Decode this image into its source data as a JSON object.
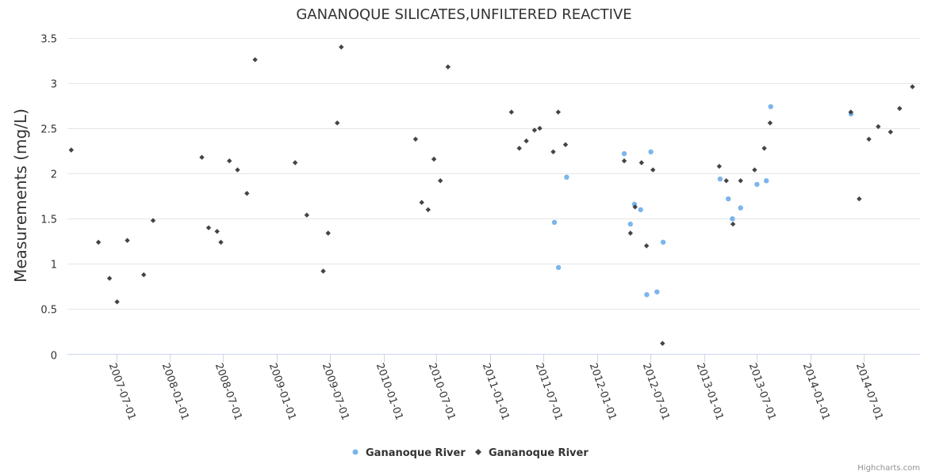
{
  "chart_data": {
    "type": "scatter",
    "title": "GANANOQUE SILICATES,UNFILTERED REACTIVE",
    "ylabel": "Measurements (mg/L)",
    "xlabel": "",
    "ylim": [
      0,
      3.5
    ],
    "y_ticks": [
      "0",
      "0.5",
      "1",
      "1.5",
      "2",
      "2.5",
      "3",
      "3.5"
    ],
    "x_range": [
      "2007-01-15",
      "2015-01-10"
    ],
    "x_ticks": [
      "2007-07-01",
      "2008-01-01",
      "2008-07-01",
      "2009-01-01",
      "2009-07-01",
      "2010-01-01",
      "2010-07-01",
      "2011-01-01",
      "2011-07-01",
      "2012-01-01",
      "2012-07-01",
      "2013-01-01",
      "2013-07-01",
      "2014-01-01",
      "2014-07-01"
    ],
    "grid": true,
    "legend_position": "bottom-center",
    "series": [
      {
        "name": "Gananoque River",
        "marker": "circle",
        "color": "#7cb5ec",
        "points": [
          [
            "2011-08-08",
            1.46
          ],
          [
            "2011-08-22",
            0.96
          ],
          [
            "2011-09-19",
            1.96
          ],
          [
            "2012-04-03",
            2.22
          ],
          [
            "2012-04-24",
            1.44
          ],
          [
            "2012-05-08",
            1.66
          ],
          [
            "2012-05-29",
            1.6
          ],
          [
            "2012-06-19",
            0.66
          ],
          [
            "2012-07-03",
            2.24
          ],
          [
            "2012-07-24",
            0.69
          ],
          [
            "2012-08-14",
            1.24
          ],
          [
            "2013-02-25",
            1.94
          ],
          [
            "2013-03-25",
            1.72
          ],
          [
            "2013-04-08",
            1.5
          ],
          [
            "2013-05-06",
            1.62
          ],
          [
            "2013-07-01",
            1.88
          ],
          [
            "2013-08-02",
            1.92
          ],
          [
            "2013-08-17",
            2.74
          ],
          [
            "2014-05-19",
            2.66
          ]
        ]
      },
      {
        "name": "Gananoque River",
        "marker": "diamond",
        "color": "#434348",
        "points": [
          [
            "2007-01-28",
            2.26
          ],
          [
            "2007-05-01",
            1.24
          ],
          [
            "2007-06-08",
            0.84
          ],
          [
            "2007-07-04",
            0.58
          ],
          [
            "2007-08-08",
            1.26
          ],
          [
            "2007-10-03",
            0.88
          ],
          [
            "2007-11-04",
            1.48
          ],
          [
            "2008-04-19",
            2.18
          ],
          [
            "2008-05-12",
            1.4
          ],
          [
            "2008-06-10",
            1.36
          ],
          [
            "2008-06-23",
            1.24
          ],
          [
            "2008-07-22",
            2.14
          ],
          [
            "2008-08-19",
            2.04
          ],
          [
            "2008-09-20",
            1.78
          ],
          [
            "2008-10-18",
            3.26
          ],
          [
            "2009-03-04",
            2.12
          ],
          [
            "2009-04-13",
            1.54
          ],
          [
            "2009-06-08",
            0.92
          ],
          [
            "2009-06-25",
            1.34
          ],
          [
            "2009-07-26",
            2.56
          ],
          [
            "2009-08-09",
            3.4
          ],
          [
            "2010-04-20",
            2.38
          ],
          [
            "2010-05-11",
            1.68
          ],
          [
            "2010-06-02",
            1.6
          ],
          [
            "2010-06-22",
            2.16
          ],
          [
            "2010-07-14",
            1.92
          ],
          [
            "2010-08-09",
            3.18
          ],
          [
            "2011-03-14",
            2.68
          ],
          [
            "2011-04-10",
            2.28
          ],
          [
            "2011-05-04",
            2.36
          ],
          [
            "2011-06-01",
            2.48
          ],
          [
            "2011-06-19",
            2.5
          ],
          [
            "2011-08-04",
            2.24
          ],
          [
            "2011-08-21",
            2.68
          ],
          [
            "2011-09-15",
            2.32
          ],
          [
            "2012-04-03",
            2.14
          ],
          [
            "2012-04-24",
            1.34
          ],
          [
            "2012-05-10",
            1.63
          ],
          [
            "2012-06-01",
            2.12
          ],
          [
            "2012-06-18",
            1.2
          ],
          [
            "2012-07-10",
            2.04
          ],
          [
            "2012-08-12",
            0.12
          ],
          [
            "2013-02-22",
            2.08
          ],
          [
            "2013-03-18",
            1.92
          ],
          [
            "2013-04-10",
            1.44
          ],
          [
            "2013-05-06",
            1.92
          ],
          [
            "2013-06-23",
            2.04
          ],
          [
            "2013-07-26",
            2.28
          ],
          [
            "2013-08-15",
            2.56
          ],
          [
            "2014-05-18",
            2.68
          ],
          [
            "2014-06-16",
            1.72
          ],
          [
            "2014-07-19",
            2.38
          ],
          [
            "2014-08-20",
            2.52
          ],
          [
            "2014-10-01",
            2.46
          ],
          [
            "2014-11-01",
            2.72
          ],
          [
            "2014-12-15",
            2.96
          ]
        ]
      }
    ]
  },
  "credits": "Highcharts.com"
}
